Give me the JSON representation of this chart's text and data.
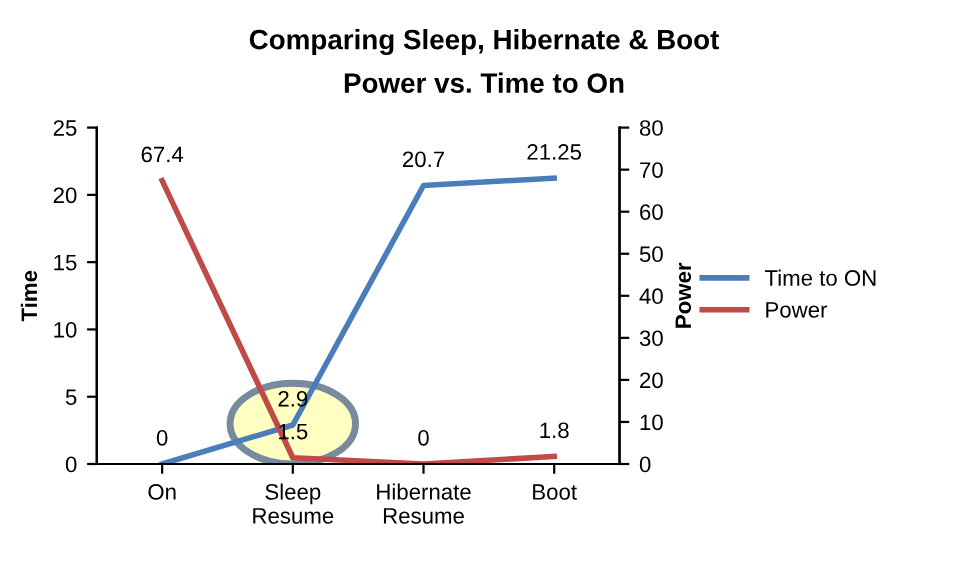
{
  "chart_data": {
    "type": "line",
    "title": "Comparing Sleep, Hibernate & Boot",
    "subtitle": "Power vs. Time to On",
    "ylabel": "Time",
    "y2label": "Power",
    "categories": [
      "On",
      "Sleep\nResume",
      "Hibernate\nResume",
      "Boot"
    ],
    "series": [
      {
        "name": "Time to ON",
        "color": "#4a7ebb",
        "values": [
          0,
          2.9,
          20.7,
          21.25
        ]
      },
      {
        "name": "Power",
        "color": "#be4b48",
        "values": [
          67.4,
          1.5,
          0,
          1.8
        ],
        "axis": "y2"
      }
    ],
    "ylim": [
      0,
      25
    ],
    "yticks": [
      0,
      5,
      10,
      15,
      20,
      25
    ],
    "y2lim": [
      0,
      80
    ],
    "y2ticks": [
      0,
      10,
      20,
      30,
      40,
      50,
      60,
      70,
      80
    ],
    "data_labels": true,
    "legend": "right",
    "grid": false,
    "marker": "none",
    "line_style": "solid"
  }
}
